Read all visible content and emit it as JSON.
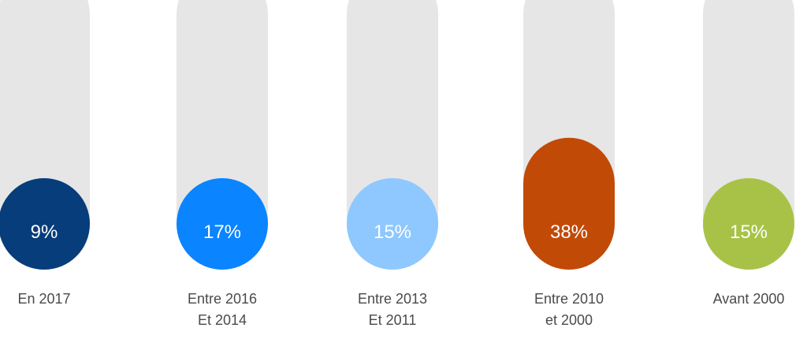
{
  "chart_data": {
    "type": "bar",
    "categories": [
      [
        "En 2017"
      ],
      [
        "Entre 2016",
        "Et 2014"
      ],
      [
        "Entre 2013",
        "Et 2011"
      ],
      [
        "Entre 2010",
        "et 2000"
      ],
      [
        "Avant 2000"
      ]
    ],
    "values": [
      9,
      17,
      15,
      38,
      15
    ],
    "value_labels": [
      "9%",
      "17%",
      "15%",
      "38%",
      "15%"
    ],
    "ylim": [
      0,
      100
    ],
    "colors": [
      "#063d7a",
      "#0a84ff",
      "#8ec8ff",
      "#c24a07",
      "#a8c247"
    ],
    "track_color": "#e6e6e6",
    "value_text_color": "#ffffff",
    "category_text_color": "#4a4a4a",
    "grid": false,
    "legend": "none"
  }
}
